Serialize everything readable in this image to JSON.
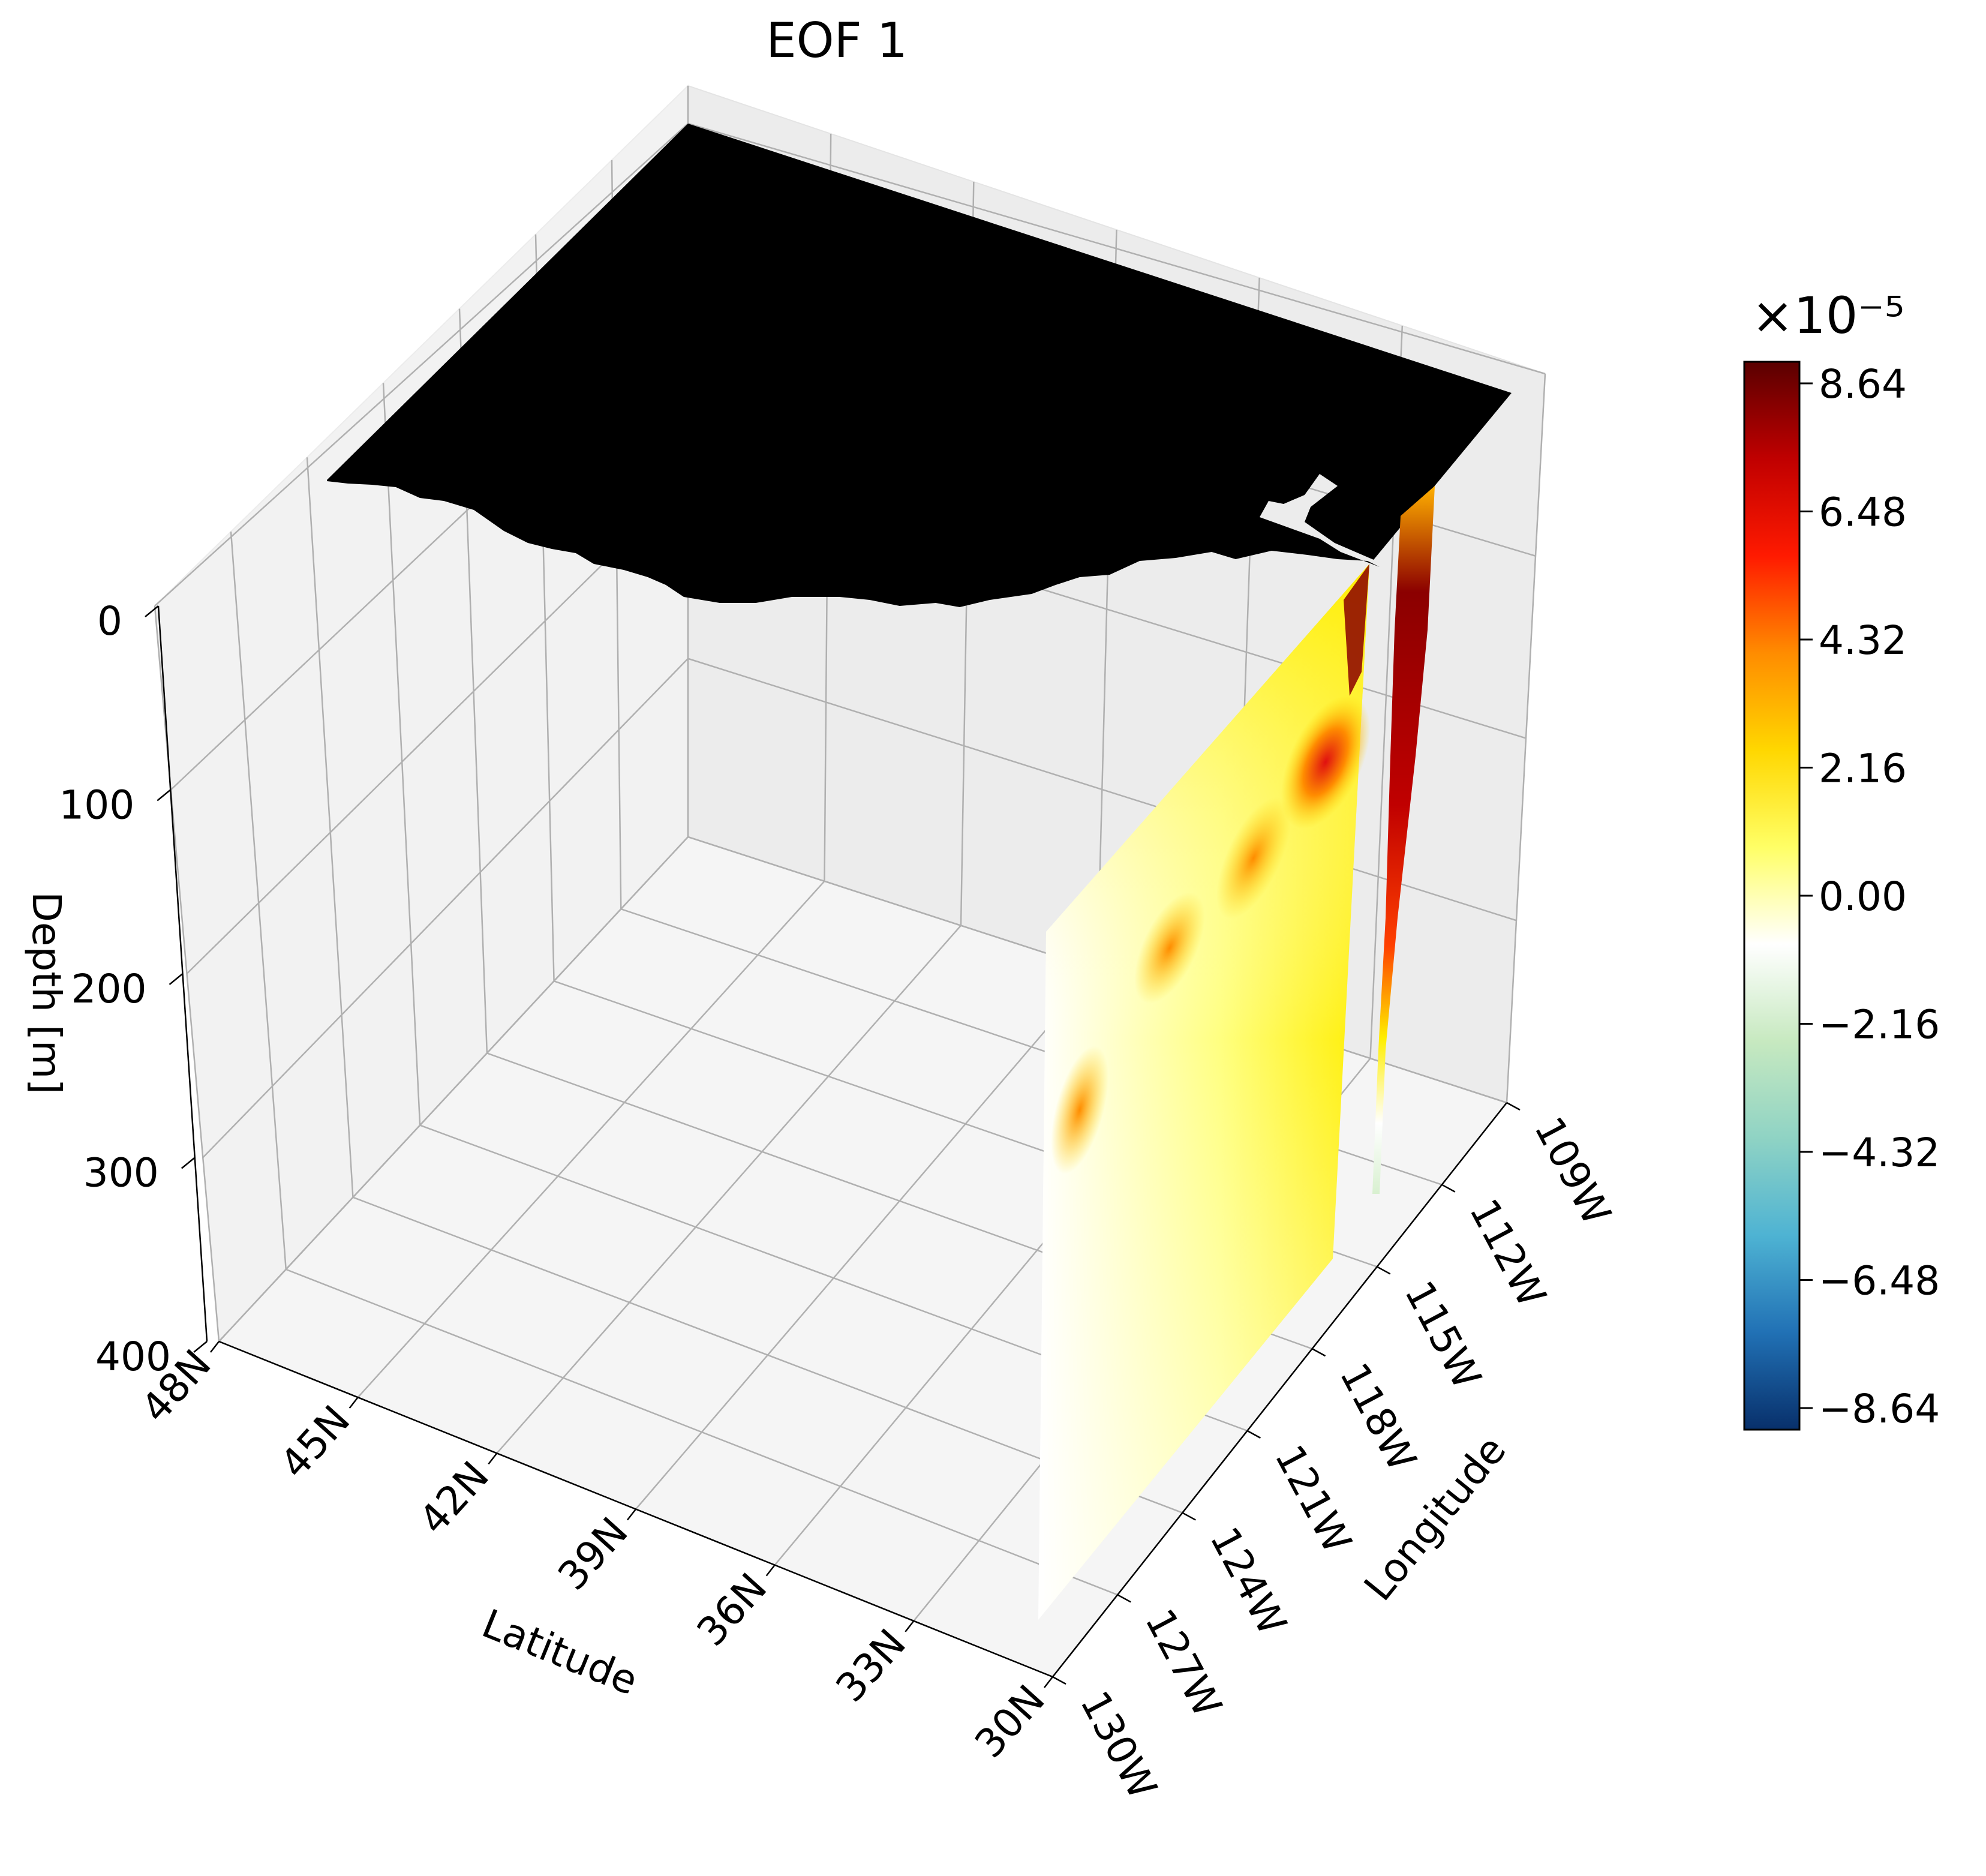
{
  "chart_data": {
    "type": "contour-3d",
    "title": "EOF 1",
    "axes": {
      "latitude": {
        "label": "Latitude",
        "range": [
          30,
          48
        ],
        "ticks": [
          48,
          45,
          42,
          39,
          36,
          33,
          30
        ],
        "tick_labels": [
          "48N",
          "45N",
          "42N",
          "39N",
          "36N",
          "33N",
          "30N"
        ]
      },
      "longitude": {
        "label": "Longitude",
        "range": [
          -130,
          -109
        ],
        "ticks": [
          -130,
          -127,
          -124,
          -121,
          -118,
          -115,
          -112,
          -109
        ],
        "tick_labels": [
          "130W",
          "127W",
          "124W",
          "121W",
          "118W",
          "115W",
          "112W",
          "109W"
        ]
      },
      "depth": {
        "label": "Depth [m]",
        "range": [
          0,
          400
        ],
        "ticks": [
          0,
          100,
          200,
          300,
          400
        ],
        "tick_labels": [
          "0",
          "100",
          "200",
          "300",
          "400"
        ],
        "inverted": true
      }
    },
    "colorbar": {
      "scale_label": "×10⁻⁵",
      "range": [
        -8.64,
        8.64
      ],
      "ticks": [
        8.64,
        6.48,
        4.32,
        2.16,
        0.0,
        -2.16,
        -4.32,
        -6.48,
        -8.64
      ],
      "tick_labels": [
        "8.64",
        "6.48",
        "4.32",
        "2.16",
        "0.00",
        "−2.16",
        "−4.32",
        "−6.48",
        "−8.64"
      ],
      "colormap": [
        "#08306b",
        "#2171b5",
        "#4eb3d3",
        "#8fd3c4",
        "#c7e9c0",
        "#ffffff",
        "#ffff66",
        "#ffd700",
        "#ff8c00",
        "#ff1a00",
        "#c00000",
        "#5a0000"
      ]
    },
    "surfaces": [
      {
        "name": "land mask at surface",
        "depth": 0,
        "color": "#000000"
      },
      {
        "name": "vertical section at 30N",
        "latitude": 30,
        "lon_range": [
          -130,
          -116
        ],
        "depth_range": [
          0,
          400
        ],
        "max_value": 8.64
      },
      {
        "name": "vertical section near 115W",
        "longitude": -115,
        "lat_range": [
          30,
          33
        ],
        "depth_range": [
          0,
          300
        ],
        "max_value": 8.64
      }
    ],
    "grid": true
  }
}
